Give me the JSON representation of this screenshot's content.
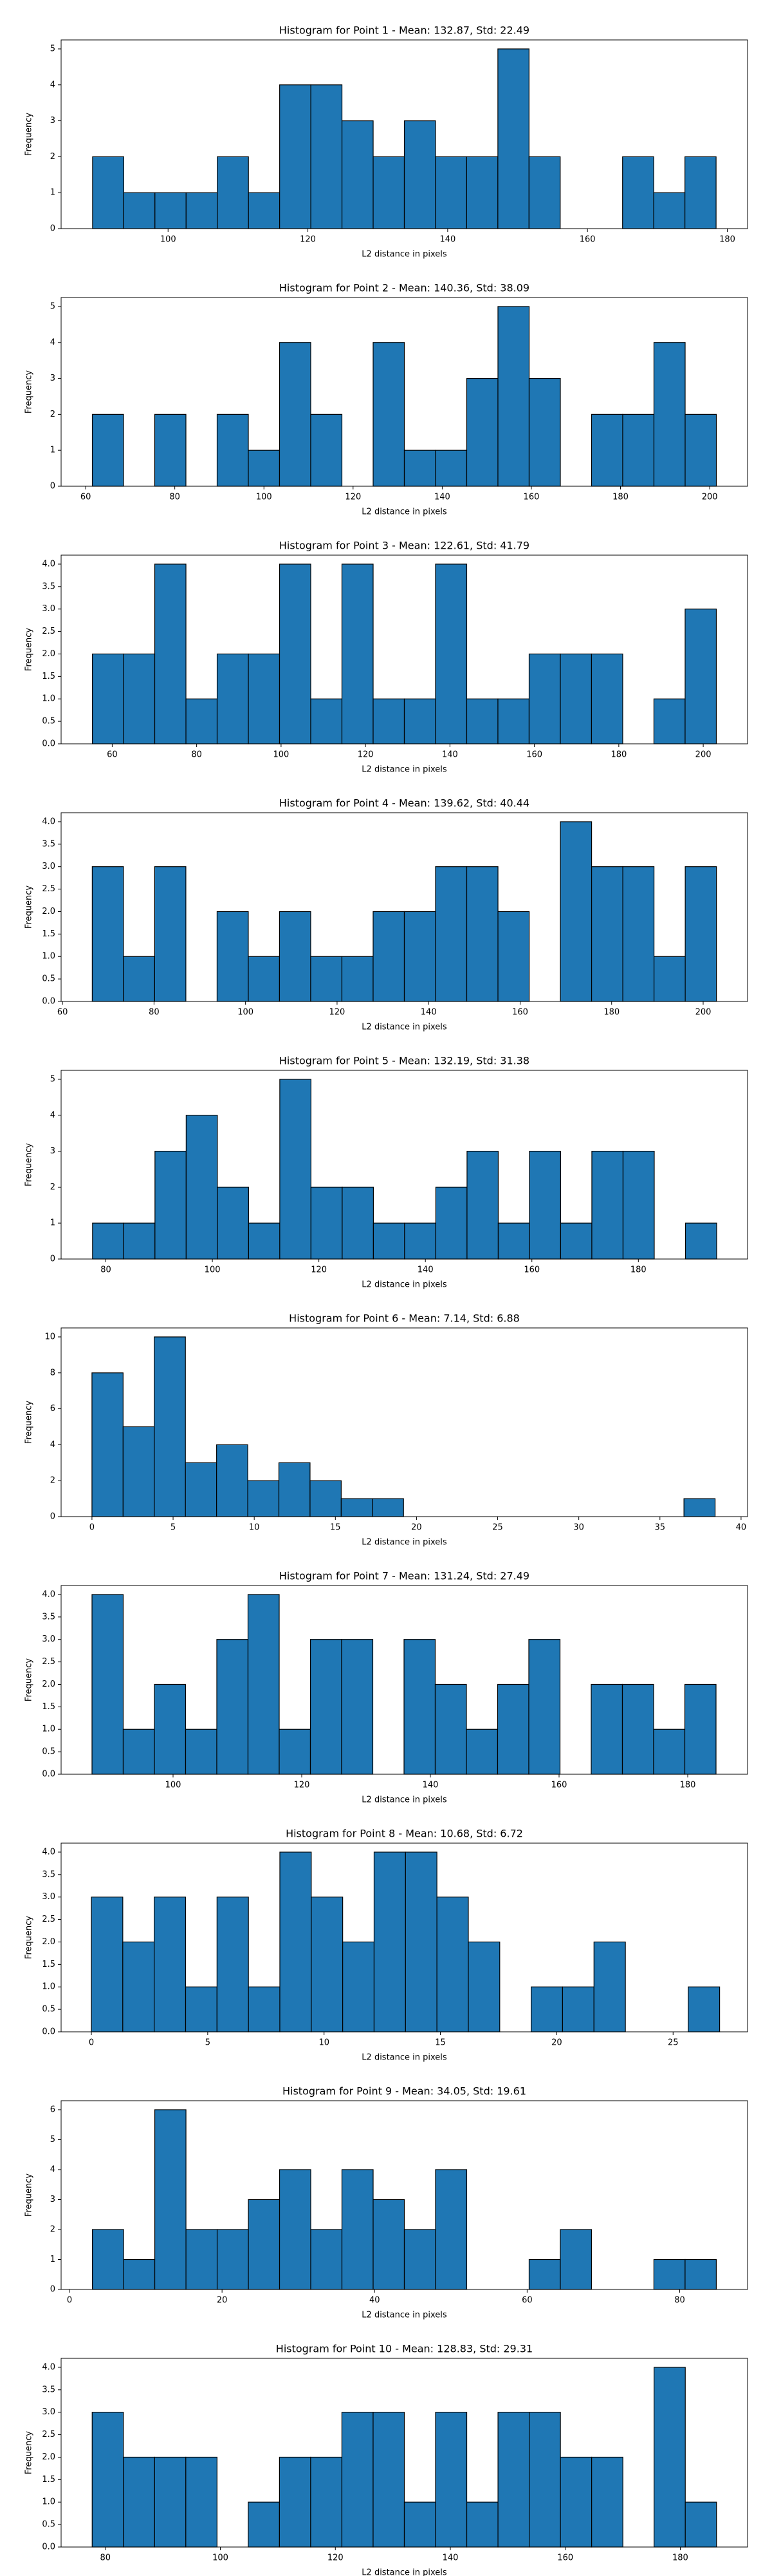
{
  "chart_data": [
    {
      "type": "histogram",
      "title": "Histogram for Point 1 - Mean: 132.87, Std: 22.49",
      "xlabel": "L2 distance in pixels",
      "ylabel": "Frequency",
      "color": "#1f77b4",
      "bins": [
        89.2,
        93.66,
        98.12,
        102.58,
        107.04,
        111.5,
        115.96,
        120.42,
        124.88,
        129.34,
        133.8,
        138.26,
        142.72,
        147.18,
        151.64,
        156.1,
        160.56,
        165.02,
        169.48,
        173.94,
        178.4
      ],
      "values": [
        2,
        1,
        1,
        1,
        2,
        1,
        4,
        4,
        3,
        2,
        3,
        2,
        2,
        5,
        2,
        0,
        0,
        2,
        1,
        2
      ],
      "xlim": [
        84.7,
        182.9
      ],
      "xticks": [
        100,
        120,
        140,
        160,
        180
      ],
      "ylim": [
        0,
        5.25
      ],
      "yticks": [
        0,
        1,
        2,
        3,
        4,
        5
      ]
    },
    {
      "type": "histogram",
      "title": "Histogram for Point 2 - Mean: 140.36, Std: 38.09",
      "xlabel": "L2 distance in pixels",
      "ylabel": "Frequency",
      "color": "#1f77b4",
      "bins": [
        61.5,
        68.5,
        75.5,
        82.5,
        89.5,
        96.5,
        103.5,
        110.5,
        117.5,
        124.5,
        131.5,
        138.5,
        145.5,
        152.5,
        159.5,
        166.5,
        173.5,
        180.5,
        187.5,
        194.5,
        201.5
      ],
      "values": [
        2,
        0,
        2,
        0,
        2,
        1,
        4,
        2,
        0,
        4,
        1,
        1,
        3,
        5,
        3,
        0,
        2,
        2,
        4,
        2
      ],
      "xlim": [
        54.5,
        208.5
      ],
      "xticks": [
        60,
        80,
        100,
        120,
        140,
        160,
        180,
        200
      ],
      "ylim": [
        0,
        5.25
      ],
      "yticks": [
        0,
        1,
        2,
        3,
        4,
        5
      ]
    },
    {
      "type": "histogram",
      "title": "Histogram for Point 3 - Mean: 122.61, Std: 41.79",
      "xlabel": "L2 distance in pixels",
      "ylabel": "Frequency",
      "color": "#1f77b4",
      "bins": [
        55.3,
        62.69,
        70.08,
        77.47,
        84.86,
        92.25,
        99.64,
        107.03,
        114.42,
        121.81,
        129.2,
        136.59,
        143.98,
        151.37,
        158.76,
        166.15,
        173.54,
        180.93,
        188.32,
        195.71,
        203.1
      ],
      "values": [
        2,
        2,
        4,
        1,
        2,
        2,
        4,
        1,
        4,
        1,
        1,
        4,
        1,
        1,
        2,
        2,
        2,
        0,
        1,
        3
      ],
      "xlim": [
        47.9,
        210.5
      ],
      "xticks": [
        60,
        80,
        100,
        120,
        140,
        160,
        180,
        200
      ],
      "ylim": [
        0,
        4.2
      ],
      "yticks": [
        {
          "value": 0,
          "label": "0.0"
        },
        0.5,
        {
          "value": 1,
          "label": "1.0"
        },
        1.5,
        {
          "value": 2,
          "label": "2.0"
        },
        2.5,
        {
          "value": 3,
          "label": "3.0"
        },
        3.5,
        {
          "value": 4,
          "label": "4.0"
        }
      ]
    },
    {
      "type": "histogram",
      "title": "Histogram for Point 4 - Mean: 139.62, Std: 40.44",
      "xlabel": "L2 distance in pixels",
      "ylabel": "Frequency",
      "color": "#1f77b4",
      "bins": [
        66.5,
        73.32,
        80.14,
        86.96,
        93.78,
        100.6,
        107.42,
        114.24,
        121.06,
        127.88,
        134.7,
        141.52,
        148.34,
        155.16,
        161.98,
        168.8,
        175.62,
        182.44,
        189.26,
        196.08,
        202.9
      ],
      "values": [
        3,
        1,
        3,
        0,
        2,
        1,
        2,
        1,
        1,
        2,
        2,
        3,
        3,
        2,
        0,
        4,
        3,
        3,
        1,
        3
      ],
      "xlim": [
        59.7,
        209.7
      ],
      "xticks": [
        60,
        80,
        100,
        120,
        140,
        160,
        180,
        200
      ],
      "ylim": [
        0,
        4.2
      ],
      "yticks": [
        {
          "value": 0,
          "label": "0.0"
        },
        0.5,
        {
          "value": 1,
          "label": "1.0"
        },
        1.5,
        {
          "value": 2,
          "label": "2.0"
        },
        2.5,
        {
          "value": 3,
          "label": "3.0"
        },
        3.5,
        {
          "value": 4,
          "label": "4.0"
        }
      ]
    },
    {
      "type": "histogram",
      "title": "Histogram for Point 5 - Mean: 132.19, Std: 31.38",
      "xlabel": "L2 distance in pixels",
      "ylabel": "Frequency",
      "color": "#1f77b4",
      "bins": [
        77.5,
        83.36,
        89.22,
        95.08,
        100.94,
        106.8,
        112.66,
        118.52,
        124.38,
        130.24,
        136.1,
        141.96,
        147.82,
        153.68,
        159.54,
        165.4,
        171.26,
        177.12,
        182.98,
        188.84,
        194.7
      ],
      "values": [
        1,
        1,
        3,
        4,
        2,
        1,
        5,
        2,
        2,
        1,
        1,
        2,
        3,
        1,
        3,
        1,
        3,
        3,
        0,
        1
      ],
      "xlim": [
        71.6,
        200.5
      ],
      "xticks": [
        80,
        100,
        120,
        140,
        160,
        180
      ],
      "ylim": [
        0,
        5.25
      ],
      "yticks": [
        0,
        1,
        2,
        3,
        4,
        5
      ]
    },
    {
      "type": "histogram",
      "title": "Histogram for Point 6 - Mean: 7.14, Std: 6.88",
      "xlabel": "L2 distance in pixels",
      "ylabel": "Frequency",
      "color": "#1f77b4",
      "bins": [
        0,
        1.92,
        3.84,
        5.76,
        7.68,
        9.6,
        11.52,
        13.44,
        15.36,
        17.28,
        19.2,
        21.12,
        23.04,
        24.96,
        26.88,
        28.8,
        30.72,
        32.64,
        34.56,
        36.48,
        38.4
      ],
      "values": [
        8,
        5,
        10,
        3,
        4,
        2,
        3,
        2,
        1,
        1,
        0,
        0,
        0,
        0,
        0,
        0,
        0,
        0,
        0,
        1
      ],
      "xlim": [
        -1.9,
        40.4
      ],
      "xticks": [
        0,
        5,
        10,
        15,
        20,
        25,
        30,
        35,
        40
      ],
      "ylim": [
        0,
        10.5
      ],
      "yticks": [
        0,
        2,
        4,
        6,
        8,
        10
      ]
    },
    {
      "type": "histogram",
      "title": "Histogram for Point 7 - Mean: 131.24, Std: 27.49",
      "xlabel": "L2 distance in pixels",
      "ylabel": "Frequency",
      "color": "#1f77b4",
      "bins": [
        87.4,
        92.25,
        97.1,
        101.95,
        106.8,
        111.65,
        116.5,
        121.35,
        126.2,
        131.05,
        135.9,
        140.75,
        145.6,
        150.45,
        155.3,
        160.15,
        165,
        169.85,
        174.7,
        179.55,
        184.4
      ],
      "values": [
        4,
        1,
        2,
        1,
        3,
        4,
        1,
        3,
        3,
        0,
        3,
        2,
        1,
        2,
        3,
        0,
        2,
        2,
        1,
        2
      ],
      "xlim": [
        82.6,
        189.3
      ],
      "xticks": [
        100,
        120,
        140,
        160,
        180
      ],
      "ylim": [
        0,
        4.2
      ],
      "yticks": [
        {
          "value": 0,
          "label": "0.0"
        },
        0.5,
        {
          "value": 1,
          "label": "1.0"
        },
        1.5,
        {
          "value": 2,
          "label": "2.0"
        },
        2.5,
        {
          "value": 3,
          "label": "3.0"
        },
        3.5,
        {
          "value": 4,
          "label": "4.0"
        }
      ]
    },
    {
      "type": "histogram",
      "title": "Histogram for Point 8 - Mean: 10.68, Std: 6.72",
      "xlabel": "L2 distance in pixels",
      "ylabel": "Frequency",
      "color": "#1f77b4",
      "bins": [
        0,
        1.35,
        2.7,
        4.05,
        5.4,
        6.75,
        8.1,
        9.45,
        10.8,
        12.15,
        13.5,
        14.85,
        16.2,
        17.55,
        18.9,
        20.25,
        21.6,
        22.95,
        24.3,
        25.65,
        27
      ],
      "values": [
        3,
        2,
        3,
        1,
        3,
        1,
        4,
        3,
        2,
        4,
        4,
        3,
        2,
        0,
        1,
        1,
        2,
        0,
        0,
        1
      ],
      "xlim": [
        -1.3,
        28.2
      ],
      "xticks": [
        0,
        5,
        10,
        15,
        20,
        25
      ],
      "ylim": [
        0,
        4.2
      ],
      "yticks": [
        {
          "value": 0,
          "label": "0.0"
        },
        0.5,
        {
          "value": 1,
          "label": "1.0"
        },
        1.5,
        {
          "value": 2,
          "label": "2.0"
        },
        2.5,
        {
          "value": 3,
          "label": "3.0"
        },
        3.5,
        {
          "value": 4,
          "label": "4.0"
        }
      ]
    },
    {
      "type": "histogram",
      "title": "Histogram for Point 9 - Mean: 34.05, Std: 19.61",
      "xlabel": "L2 distance in pixels",
      "ylabel": "Frequency",
      "color": "#1f77b4",
      "bins": [
        3,
        7.09,
        11.18,
        15.27,
        19.36,
        23.45,
        27.54,
        31.63,
        35.72,
        39.81,
        43.9,
        47.99,
        52.08,
        56.17,
        60.26,
        64.35,
        68.44,
        72.53,
        76.62,
        80.71,
        84.8
      ],
      "values": [
        2,
        1,
        6,
        2,
        2,
        3,
        4,
        2,
        4,
        3,
        2,
        4,
        0,
        0,
        1,
        2,
        0,
        0,
        1,
        1
      ],
      "xlim": [
        -1.1,
        88.9
      ],
      "xticks": [
        0,
        20,
        40,
        60,
        80
      ],
      "ylim": [
        0,
        6.3
      ],
      "yticks": [
        0,
        1,
        2,
        3,
        4,
        5,
        6
      ]
    },
    {
      "type": "histogram",
      "title": "Histogram for Point 10 - Mean: 128.83, Std: 29.31",
      "xlabel": "L2 distance in pixels",
      "ylabel": "Frequency",
      "color": "#1f77b4",
      "bins": [
        77.7,
        83.13,
        88.56,
        93.99,
        99.42,
        104.85,
        110.28,
        115.71,
        121.14,
        126.57,
        132,
        137.43,
        142.86,
        148.29,
        153.72,
        159.15,
        164.58,
        170.01,
        175.44,
        180.87,
        186.3
      ],
      "values": [
        3,
        2,
        2,
        2,
        0,
        1,
        2,
        2,
        3,
        3,
        1,
        3,
        1,
        3,
        3,
        2,
        2,
        0,
        4,
        1
      ],
      "xlim": [
        72.3,
        191.7
      ],
      "xticks": [
        80,
        100,
        120,
        140,
        160,
        180
      ],
      "ylim": [
        0,
        4.2
      ],
      "yticks": [
        {
          "value": 0,
          "label": "0.0"
        },
        0.5,
        {
          "value": 1,
          "label": "1.0"
        },
        1.5,
        {
          "value": 2,
          "label": "2.0"
        },
        2.5,
        {
          "value": 3,
          "label": "3.0"
        },
        3.5,
        {
          "value": 4,
          "label": "4.0"
        }
      ]
    }
  ]
}
